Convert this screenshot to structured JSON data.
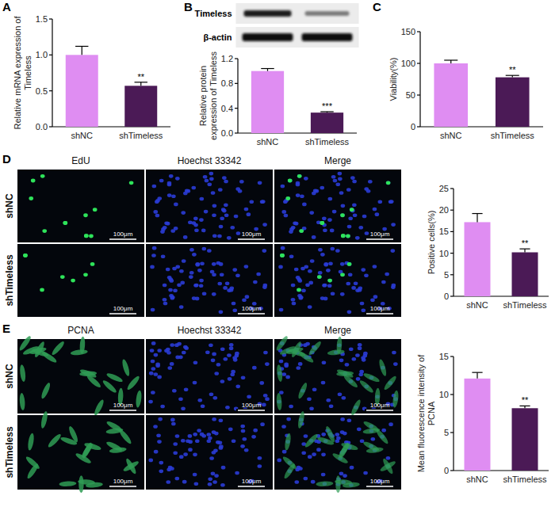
{
  "chart_data": [
    {
      "type": "bar",
      "panel": "A",
      "ylabel": "Relative mRNA expression of Timeless",
      "categories": [
        "shNC",
        "shTimeless"
      ],
      "values": [
        1.0,
        0.57
      ],
      "errors": [
        0.12,
        0.05
      ],
      "colors": [
        "#df8df2",
        "#4b1a56"
      ],
      "ylim": [
        0,
        1.5
      ],
      "yticks": [
        {
          "value": 0,
          "label": "0.0"
        },
        {
          "value": 0.5,
          "label": "0.5"
        },
        {
          "value": 1.0,
          "label": "1.0"
        },
        {
          "value": 1.5,
          "label": "1.5"
        }
      ],
      "annotations": [
        {
          "text": "**",
          "category": "shTimeless"
        }
      ],
      "grid": false
    },
    {
      "type": "bar",
      "panel": "B",
      "ylabel": "Relative protein expression of Timeless",
      "categories": [
        "shNC",
        "shTimeless"
      ],
      "values": [
        1.0,
        0.33
      ],
      "errors": [
        0.04,
        0.015
      ],
      "colors": [
        "#df8df2",
        "#4b1a56"
      ],
      "ylim": [
        0,
        1.2
      ],
      "yticks": [
        {
          "value": 0,
          "label": "0.0"
        },
        {
          "value": 0.4,
          "label": "0.4"
        },
        {
          "value": 0.8,
          "label": "0.8"
        },
        {
          "value": 1.2,
          "label": "1.2"
        }
      ],
      "annotations": [
        {
          "text": "***",
          "category": "shTimeless"
        }
      ],
      "grid": false,
      "blot": [
        "Timeless",
        "β-actin"
      ]
    },
    {
      "type": "bar",
      "panel": "C",
      "ylabel": "Viability(%)",
      "categories": [
        "shNC",
        "shTimeless"
      ],
      "values": [
        100,
        78
      ],
      "errors": [
        5,
        3
      ],
      "colors": [
        "#df8df2",
        "#4b1a56"
      ],
      "ylim": [
        0,
        150
      ],
      "yticks": [
        0,
        50,
        100,
        150
      ],
      "annotations": [
        {
          "text": "**",
          "category": "shTimeless"
        }
      ],
      "grid": false
    },
    {
      "type": "bar",
      "ylabel": "Positive cells(%)",
      "categories": [
        "shNC",
        "shTimeless"
      ],
      "values": [
        17.2,
        10.2
      ],
      "errors": [
        2.0,
        0.8
      ],
      "colors": [
        "#df8df2",
        "#4b1a56"
      ],
      "ylim": [
        0,
        25
      ],
      "yticks": [
        0,
        5,
        10,
        15,
        20,
        25
      ],
      "annotations": [
        {
          "text": "**",
          "category": "shTimeless"
        }
      ],
      "grid": false
    },
    {
      "type": "bar",
      "ylabel": "Mean fluorescence intensity of PCNA",
      "categories": [
        "shNC",
        "shTimeless"
      ],
      "values": [
        12.1,
        8.2
      ],
      "errors": [
        0.8,
        0.3
      ],
      "colors": [
        "#df8df2",
        "#4b1a56"
      ],
      "ylim": [
        0,
        15
      ],
      "yticks": [
        0,
        5,
        10,
        15
      ],
      "annotations": [
        {
          "text": "**",
          "category": "shTimeless"
        }
      ],
      "grid": false
    }
  ],
  "micrographs": [
    {
      "panel": "D",
      "channels": [
        "EdU",
        "Hoechst 33342",
        "Merge"
      ],
      "groups": [
        "shNC",
        "shTimeless"
      ],
      "scale_bar": "100μm"
    },
    {
      "panel": "E",
      "channels": [
        "PCNA",
        "Hoechst 33342",
        "Merge"
      ],
      "groups": [
        "shNC",
        "shTimeless"
      ],
      "scale_bar": "100μm"
    }
  ]
}
